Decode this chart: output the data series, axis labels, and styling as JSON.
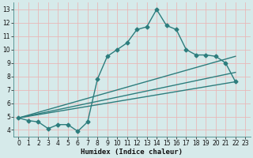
{
  "xlabel": "Humidex (Indice chaleur)",
  "bg_color": "#d6eaea",
  "grid_color": "#e8b8b8",
  "line_color": "#2d7d7d",
  "xlim": [
    -0.5,
    23.5
  ],
  "ylim": [
    3.5,
    13.5
  ],
  "yticks": [
    4,
    5,
    6,
    7,
    8,
    9,
    10,
    11,
    12,
    13
  ],
  "xticks": [
    0,
    1,
    2,
    3,
    4,
    5,
    6,
    7,
    8,
    9,
    10,
    11,
    12,
    13,
    14,
    15,
    16,
    17,
    18,
    19,
    20,
    21,
    22,
    23
  ],
  "series1_x": [
    0,
    1,
    2,
    3,
    4,
    5,
    6,
    7,
    8,
    9,
    10,
    11,
    12,
    13,
    14,
    15,
    16,
    17,
    18,
    19,
    20,
    21,
    22
  ],
  "series1_y": [
    4.9,
    4.7,
    4.6,
    4.1,
    4.4,
    4.4,
    3.9,
    4.6,
    7.8,
    9.5,
    10.0,
    10.5,
    11.5,
    11.7,
    13.0,
    11.8,
    11.5,
    10.0,
    9.6,
    9.6,
    9.5,
    9.0,
    7.6
  ],
  "series2_x": [
    0,
    22
  ],
  "series2_y": [
    4.9,
    7.6
  ],
  "series3_x": [
    0,
    22
  ],
  "series3_y": [
    4.9,
    8.3
  ],
  "series4_x": [
    0,
    22
  ],
  "series4_y": [
    4.9,
    9.5
  ],
  "marker_style": "D",
  "marker_size": 2.5,
  "line_width": 1.0,
  "xlabel_fontsize": 6.5,
  "tick_fontsize": 5.5
}
